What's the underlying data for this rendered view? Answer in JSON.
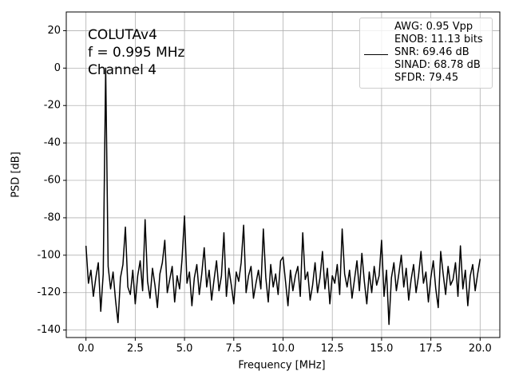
{
  "chart_data": {
    "type": "line",
    "annotation": [
      "COLUTAv4",
      "f = 0.995 MHz",
      "Channel 4"
    ],
    "xlabel": "Frequency [MHz]",
    "ylabel": "PSD [dB]",
    "x": [
      0,
      0.125,
      0.25,
      0.375,
      0.5,
      0.625,
      0.75,
      0.875,
      1,
      1.125,
      1.25,
      1.375,
      1.5,
      1.625,
      1.75,
      1.875,
      2,
      2.125,
      2.25,
      2.375,
      2.5,
      2.625,
      2.75,
      2.875,
      3,
      3.125,
      3.25,
      3.375,
      3.5,
      3.625,
      3.75,
      3.875,
      4,
      4.125,
      4.25,
      4.375,
      4.5,
      4.625,
      4.75,
      4.875,
      5,
      5.125,
      5.25,
      5.375,
      5.5,
      5.625,
      5.75,
      5.875,
      6,
      6.125,
      6.25,
      6.375,
      6.5,
      6.625,
      6.75,
      6.875,
      7,
      7.125,
      7.25,
      7.375,
      7.5,
      7.625,
      7.75,
      7.875,
      8,
      8.125,
      8.25,
      8.375,
      8.5,
      8.625,
      8.75,
      8.875,
      9,
      9.125,
      9.25,
      9.375,
      9.5,
      9.625,
      9.75,
      9.875,
      10,
      10.125,
      10.25,
      10.375,
      10.5,
      10.625,
      10.75,
      10.875,
      11,
      11.125,
      11.25,
      11.375,
      11.5,
      11.625,
      11.75,
      11.875,
      12,
      12.125,
      12.25,
      12.375,
      12.5,
      12.625,
      12.75,
      12.875,
      13,
      13.125,
      13.25,
      13.375,
      13.5,
      13.625,
      13.75,
      13.875,
      14,
      14.125,
      14.25,
      14.375,
      14.5,
      14.625,
      14.75,
      14.875,
      15,
      15.125,
      15.25,
      15.375,
      15.5,
      15.625,
      15.75,
      15.875,
      16,
      16.125,
      16.25,
      16.375,
      16.5,
      16.625,
      16.75,
      16.875,
      17,
      17.125,
      17.25,
      17.375,
      17.5,
      17.625,
      17.75,
      17.875,
      18,
      18.125,
      18.25,
      18.375,
      18.5,
      18.625,
      18.75,
      18.875,
      19,
      19.125,
      19.25,
      19.375,
      19.5,
      19.625,
      19.75,
      19.875,
      20
    ],
    "series": [
      {
        "name": "AWG: 0.95 Vpp\nENOB: 11.13 bits\nSNR: 69.46 dB\nSINAD: 68.78 dB\nSFDR: 79.45",
        "color": "#000000",
        "values": [
          -95,
          -115,
          -108,
          -122,
          -112,
          -104,
          -130,
          -110,
          0,
          -106,
          -118,
          -109,
          -124,
          -136,
          -112,
          -105,
          -85,
          -117,
          -121,
          -108,
          -126,
          -111,
          -103,
          -119,
          -81,
          -114,
          -123,
          -107,
          -116,
          -128,
          -110,
          -104,
          -92,
          -120,
          -113,
          -106,
          -125,
          -111,
          -118,
          -102,
          -79,
          -115,
          -109,
          -127,
          -112,
          -105,
          -121,
          -110,
          -96,
          -117,
          -108,
          -124,
          -113,
          -103,
          -119,
          -111,
          -88,
          -122,
          -107,
          -116,
          -126,
          -109,
          -114,
          -104,
          -84,
          -120,
          -111,
          -106,
          -123,
          -115,
          -108,
          -118,
          -86,
          -112,
          -125,
          -105,
          -117,
          -110,
          -121,
          -103,
          -101,
          -114,
          -127,
          -108,
          -119,
          -111,
          -106,
          -122,
          -88,
          -113,
          -109,
          -124,
          -116,
          -104,
          -120,
          -112,
          -98,
          -118,
          -107,
          -126,
          -111,
          -115,
          -105,
          -121,
          -86,
          -110,
          -117,
          -108,
          -123,
          -113,
          -103,
          -119,
          -99,
          -114,
          -126,
          -109,
          -120,
          -106,
          -116,
          -111,
          -92,
          -122,
          -108,
          -137,
          -112,
          -104,
          -119,
          -110,
          -100,
          -117,
          -107,
          -124,
          -113,
          -105,
          -120,
          -111,
          -98,
          -115,
          -109,
          -125,
          -112,
          -103,
          -118,
          -128,
          -98,
          -110,
          -121,
          -106,
          -116,
          -113,
          -104,
          -122,
          -95,
          -118,
          -108,
          -127,
          -111,
          -105,
          -119,
          -110,
          -102
        ]
      }
    ],
    "xlim": [
      -1,
      21
    ],
    "ylim": [
      -144,
      30
    ],
    "xticks": [
      {
        "value": 0,
        "label": "0.0"
      },
      2.5,
      {
        "value": 5,
        "label": "5.0"
      },
      7.5,
      {
        "value": 10,
        "label": "10.0"
      },
      12.5,
      {
        "value": 15,
        "label": "15.0"
      },
      17.5,
      {
        "value": 20,
        "label": "20.0"
      }
    ],
    "yticks": [
      20,
      0,
      -20,
      -40,
      -60,
      -80,
      -100,
      -120,
      -140
    ],
    "grid": true,
    "legend": "upper right"
  }
}
